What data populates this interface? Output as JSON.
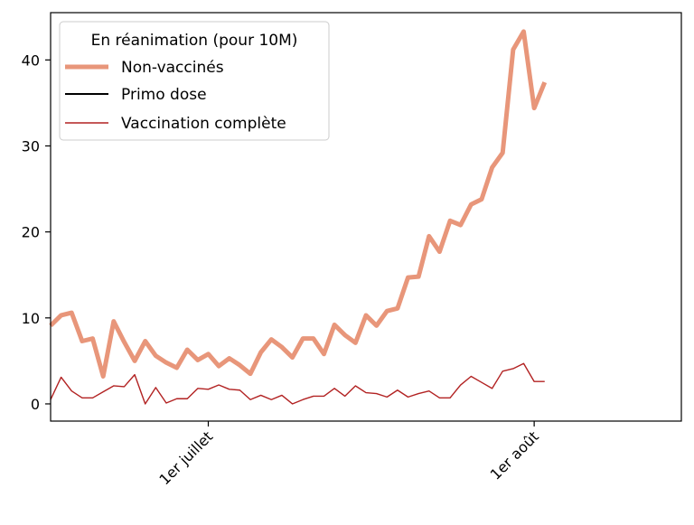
{
  "chart_data": {
    "type": "line",
    "legend_title": "En réanimation (pour 10M)",
    "legend_placement": "top-left",
    "grid": false,
    "x_range": [
      0,
      60
    ],
    "ylim": [
      -2,
      45.5
    ],
    "y_ticks": [
      0,
      10,
      20,
      30,
      40
    ],
    "x_ticks": [
      {
        "x": 15,
        "label": "1er juillet"
      },
      {
        "x": 46,
        "label": "1er août"
      }
    ],
    "series": [
      {
        "name": "Non-vaccinés",
        "color": "#E8967A",
        "values": [
          9.1,
          10.3,
          10.6,
          7.3,
          7.6,
          3.2,
          9.6,
          7.2,
          5.0,
          7.3,
          5.6,
          4.8,
          4.2,
          6.3,
          5.1,
          5.8,
          4.4,
          5.3,
          4.5,
          3.5,
          6.0,
          7.5,
          6.6,
          5.4,
          7.6,
          7.6,
          5.8,
          9.2,
          8.0,
          7.1,
          10.3,
          9.1,
          10.8,
          11.1,
          14.7,
          14.8,
          19.5,
          17.7,
          21.3,
          20.8,
          23.2,
          23.8,
          27.5,
          29.2,
          41.2,
          43.3,
          34.4,
          37.4
        ]
      },
      {
        "name": "Primo dose",
        "color": "#000000",
        "values": []
      },
      {
        "name": "Vaccination complète",
        "color": "#B22222",
        "values": [
          0.5,
          3.1,
          1.5,
          0.7,
          0.7,
          1.4,
          2.1,
          2.0,
          3.4,
          0.0,
          1.9,
          0.1,
          0.6,
          0.6,
          1.8,
          1.7,
          2.2,
          1.7,
          1.6,
          0.5,
          1.0,
          0.5,
          1.0,
          0.0,
          0.5,
          0.9,
          0.9,
          1.8,
          0.9,
          2.1,
          1.3,
          1.2,
          0.8,
          1.6,
          0.8,
          1.2,
          1.5,
          0.7,
          0.7,
          2.2,
          3.2,
          2.5,
          1.8,
          3.8,
          4.1,
          4.7,
          2.6,
          2.6
        ]
      }
    ]
  }
}
